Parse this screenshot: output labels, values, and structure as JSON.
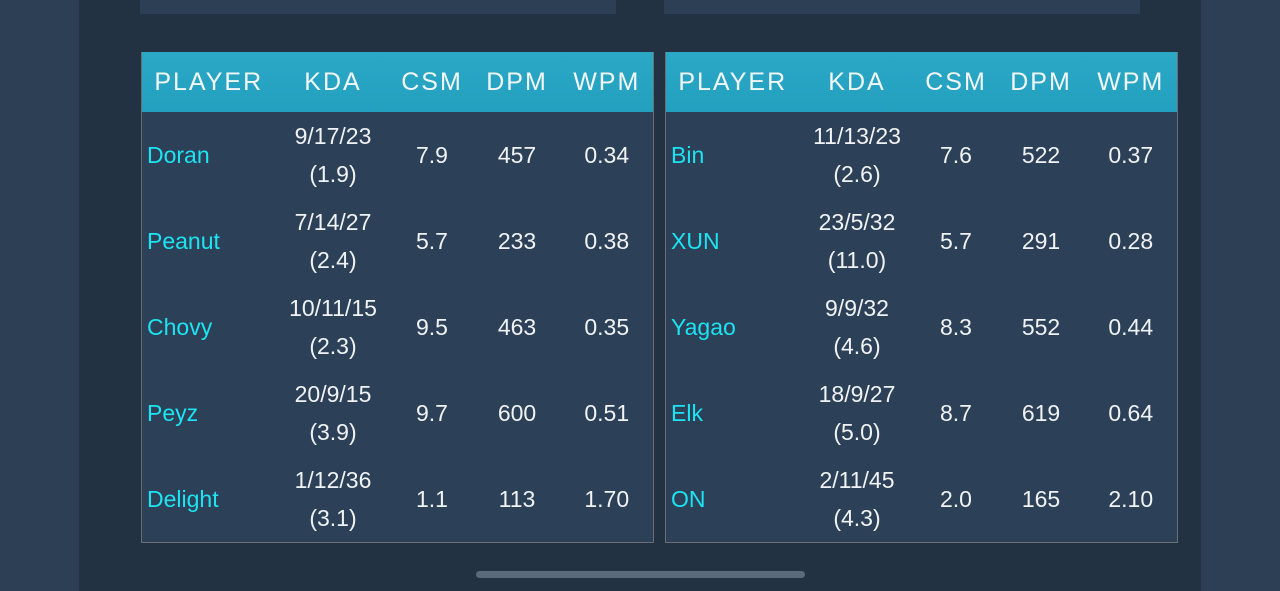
{
  "columns": [
    "PLAYER",
    "KDA",
    "CSM",
    "DPM",
    "WPM"
  ],
  "tables": [
    {
      "rows": [
        {
          "player": "Doran",
          "kda": "9/17/23",
          "ratio": "(1.9)",
          "csm": "7.9",
          "dpm": "457",
          "wpm": "0.34"
        },
        {
          "player": "Peanut",
          "kda": "7/14/27",
          "ratio": "(2.4)",
          "csm": "5.7",
          "dpm": "233",
          "wpm": "0.38"
        },
        {
          "player": "Chovy",
          "kda": "10/11/15",
          "ratio": "(2.3)",
          "csm": "9.5",
          "dpm": "463",
          "wpm": "0.35"
        },
        {
          "player": "Peyz",
          "kda": "20/9/15",
          "ratio": "(3.9)",
          "csm": "9.7",
          "dpm": "600",
          "wpm": "0.51"
        },
        {
          "player": "Delight",
          "kda": "1/12/36",
          "ratio": "(3.1)",
          "csm": "1.1",
          "dpm": "113",
          "wpm": "1.70"
        }
      ]
    },
    {
      "rows": [
        {
          "player": "Bin",
          "kda": "11/13/23",
          "ratio": "(2.6)",
          "csm": "7.6",
          "dpm": "522",
          "wpm": "0.37"
        },
        {
          "player": "XUN",
          "kda": "23/5/32",
          "ratio": "(11.0)",
          "csm": "5.7",
          "dpm": "291",
          "wpm": "0.28"
        },
        {
          "player": "Yagao",
          "kda": "9/9/32",
          "ratio": "(4.6)",
          "csm": "8.3",
          "dpm": "552",
          "wpm": "0.44"
        },
        {
          "player": "Elk",
          "kda": "18/9/27",
          "ratio": "(5.0)",
          "csm": "8.7",
          "dpm": "619",
          "wpm": "0.64"
        },
        {
          "player": "ON",
          "kda": "2/11/45",
          "ratio": "(4.3)",
          "csm": "2.0",
          "dpm": "165",
          "wpm": "2.10"
        }
      ]
    }
  ],
  "colors": {
    "header": "#26a4c2",
    "player_name": "#1de3f2",
    "cell_bg": "#2c4057"
  }
}
